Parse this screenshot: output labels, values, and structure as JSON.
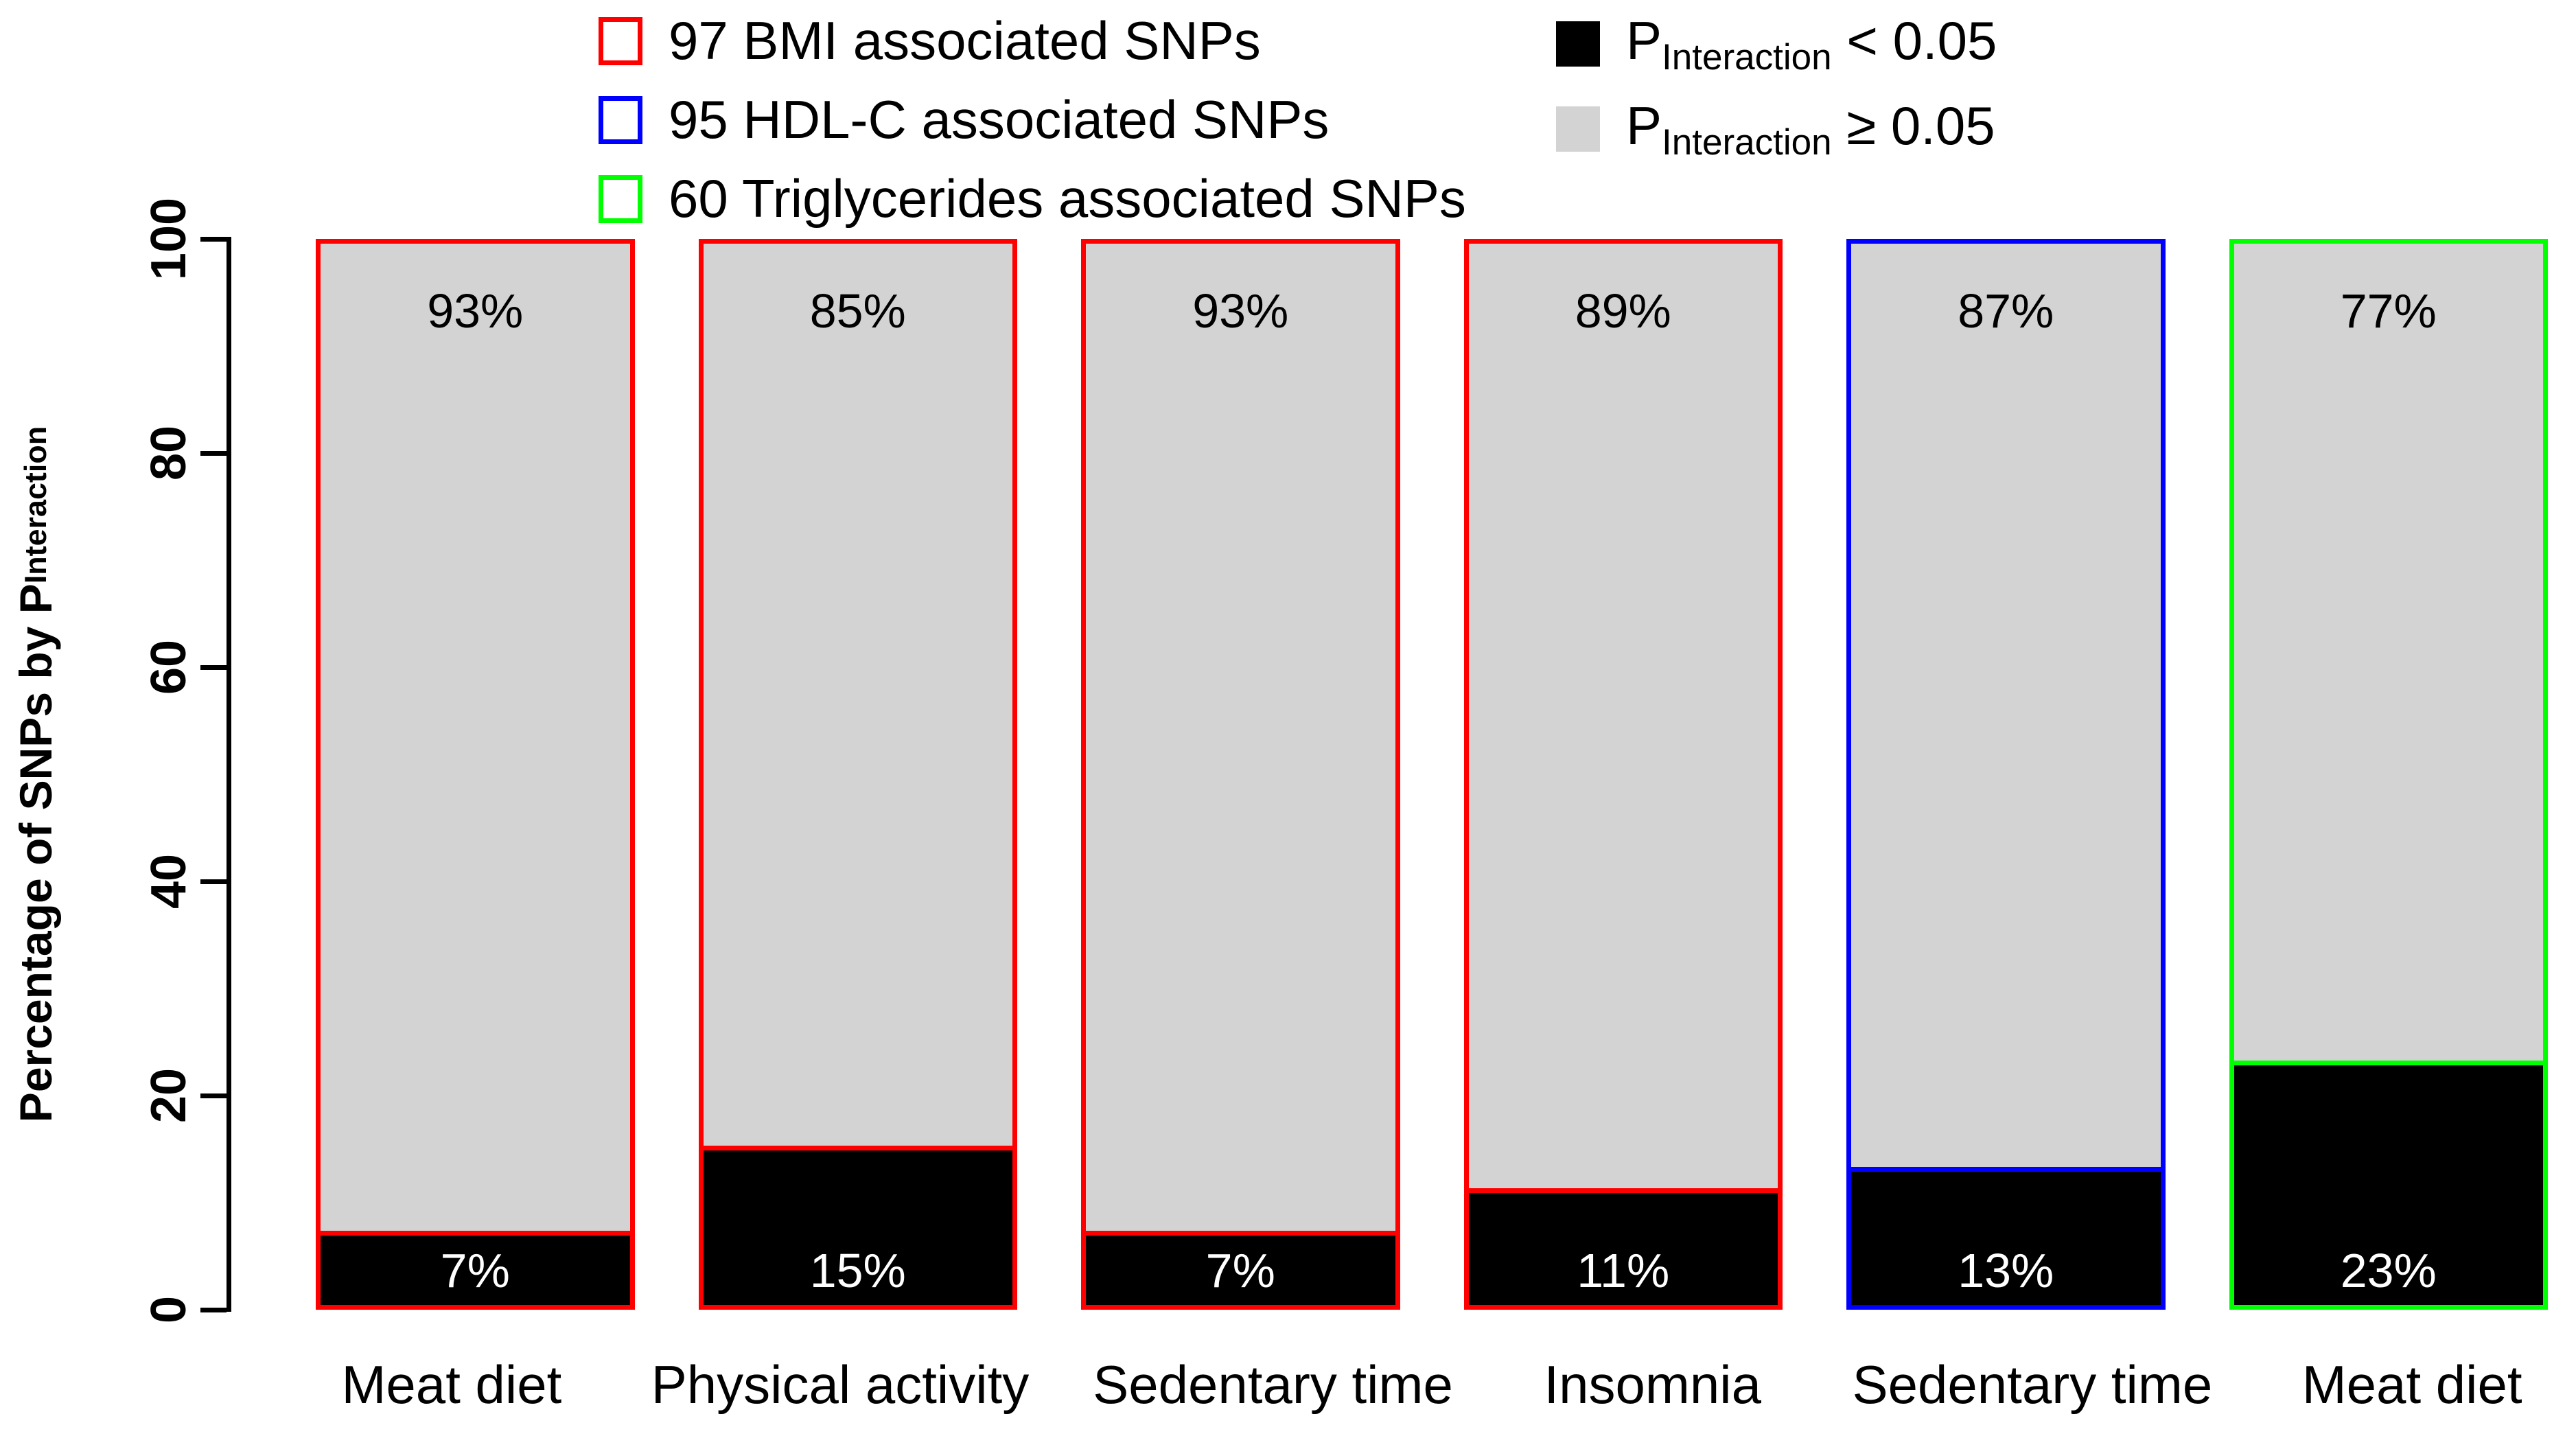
{
  "chart_data": {
    "type": "bar",
    "subtype": "stacked-percentage",
    "title": "",
    "xlabel": "",
    "ylabel": "Percentage of SNPs by P_Interaction",
    "ylabel_main": "Percentage of SNPs by P",
    "ylabel_subscript": "Interaction",
    "ylim": [
      0,
      100
    ],
    "yticks": [
      0,
      20,
      40,
      60,
      80,
      100
    ],
    "grid": false,
    "legend_position": "top",
    "categories": [
      "Meat diet",
      "Physical activity",
      "Sedentary time",
      "Insomnia",
      "Sedentary time",
      "Meat diet"
    ],
    "bar_groups": [
      "97 BMI associated SNPs",
      "97 BMI associated SNPs",
      "97 BMI associated SNPs",
      "97 BMI associated SNPs",
      "95 HDL-C associated SNPs",
      "60 Triglycerides associated SNPs"
    ],
    "bar_border_colors": [
      "#FF0000",
      "#FF0000",
      "#FF0000",
      "#FF0000",
      "#0000FF",
      "#00FF00"
    ],
    "series": [
      {
        "name": "P_Interaction < 0.05",
        "color": "#000000",
        "values": [
          7,
          15,
          7,
          11,
          13,
          23
        ]
      },
      {
        "name": "P_Interaction >= 0.05",
        "color": "#D3D3D3",
        "values": [
          93,
          85,
          93,
          89,
          87,
          77
        ]
      }
    ]
  },
  "y_axis": {
    "title_main": "Percentage of SNPs by P",
    "title_sub": "Interaction",
    "ticks": [
      "0",
      "20",
      "40",
      "60",
      "80",
      "100"
    ]
  },
  "bars": [
    {
      "category": "Meat diet",
      "border_color": "#FF0000",
      "lt_pct": 7,
      "ge_pct": 93,
      "lt_label": "7%",
      "ge_label": "93%"
    },
    {
      "category": "Physical activity",
      "border_color": "#FF0000",
      "lt_pct": 15,
      "ge_pct": 85,
      "lt_label": "15%",
      "ge_label": "85%"
    },
    {
      "category": "Sedentary time",
      "border_color": "#FF0000",
      "lt_pct": 7,
      "ge_pct": 93,
      "lt_label": "7%",
      "ge_label": "93%"
    },
    {
      "category": "Insomnia",
      "border_color": "#FF0000",
      "lt_pct": 11,
      "ge_pct": 89,
      "lt_label": "11%",
      "ge_label": "89%"
    },
    {
      "category": "Sedentary time",
      "border_color": "#0000FF",
      "lt_pct": 13,
      "ge_pct": 87,
      "lt_label": "13%",
      "ge_label": "87%"
    },
    {
      "category": "Meat diet",
      "border_color": "#00FF00",
      "lt_pct": 23,
      "ge_pct": 77,
      "lt_label": "23%",
      "ge_label": "77%"
    }
  ],
  "legend_snp": [
    {
      "label": "97 BMI associated SNPs",
      "color": "#FF0000"
    },
    {
      "label": "95 HDL-C associated SNPs",
      "color": "#0000FF"
    },
    {
      "label": "60 Triglycerides associated SNPs",
      "color": "#00FF00"
    }
  ],
  "legend_p": [
    {
      "symbol": "P",
      "sub": "Interaction",
      "condition": "< 0.05",
      "fill": "#000000"
    },
    {
      "symbol": "P",
      "sub": "Interaction",
      "condition": "≥ 0.05",
      "fill": "#D3D3D3"
    }
  ],
  "colors": {
    "bmi_border": "#FF0000",
    "hdl_border": "#0000FF",
    "triglycerides_border": "#00FF00",
    "p_lt_fill": "#000000",
    "p_ge_fill": "#D3D3D3",
    "axis": "#000000",
    "background": "#FFFFFF"
  }
}
